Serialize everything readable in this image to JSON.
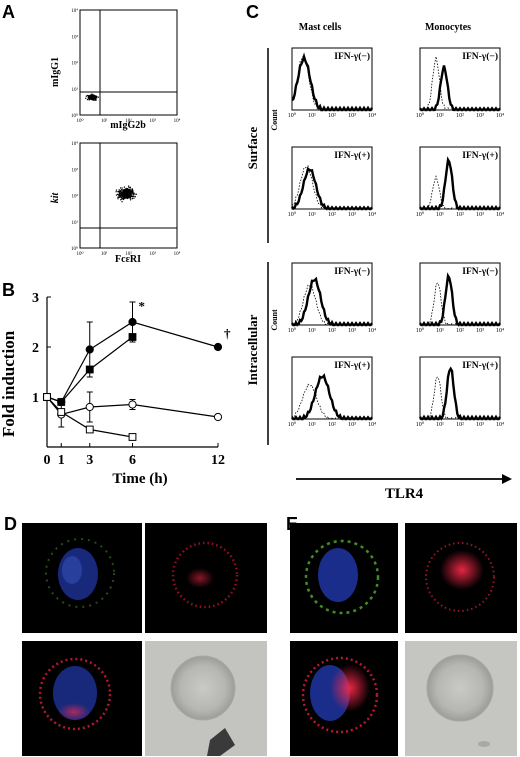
{
  "panels": {
    "A": {
      "label": "A",
      "top": {
        "ylabel": "mIgG1",
        "xlabel": "mIgG2b"
      },
      "bottom": {
        "ylabel": "kit",
        "xlabel": "FcεRI"
      },
      "ticks_y": [
        "10⁴",
        "10³",
        "10²",
        "10¹",
        "10⁰"
      ],
      "ticks_x": [
        "10⁰",
        "10¹",
        "10²",
        "10³",
        "10⁴"
      ]
    },
    "B": {
      "label": "B"
    },
    "C": {
      "label": "C",
      "col1": "Mast cells",
      "col2": "Monocytes",
      "surface": "Surface",
      "intracellular": "Intracellular",
      "count": "Count",
      "tlr4": "TLR4",
      "cond_neg": "IFN-γ(−)",
      "cond_pos": "IFN-γ(+)",
      "ticks": [
        "10⁰",
        "10¹",
        "10²",
        "10³",
        "10⁴"
      ]
    },
    "D": {
      "label": "D"
    },
    "E": {
      "label": "E"
    }
  },
  "chart_data": {
    "type": "line",
    "xlabel": "Time (h)",
    "ylabel": "Fold induction",
    "xlim": [
      0,
      12
    ],
    "ylim": [
      0,
      3
    ],
    "xticks": [
      0,
      1,
      3,
      6,
      12
    ],
    "yticks": [
      1,
      2,
      3
    ],
    "series": [
      {
        "marker": "filled-circle",
        "x": [
          0,
          1,
          3,
          6,
          12
        ],
        "y": [
          1.0,
          0.9,
          1.95,
          2.5,
          2.0
        ],
        "err": [
          0,
          0,
          0.55,
          0.4,
          0
        ]
      },
      {
        "marker": "filled-square",
        "x": [
          0,
          1,
          3,
          6
        ],
        "y": [
          1.0,
          0.9,
          1.55,
          2.2
        ],
        "err": [
          0,
          0,
          0,
          0
        ]
      },
      {
        "marker": "open-circle",
        "x": [
          0,
          1,
          3,
          6,
          12
        ],
        "y": [
          1.0,
          0.65,
          0.8,
          0.85,
          0.6
        ],
        "err": [
          0,
          0.25,
          0.3,
          0.1,
          0
        ]
      },
      {
        "marker": "open-square",
        "x": [
          0,
          1,
          3,
          6
        ],
        "y": [
          1.0,
          0.7,
          0.35,
          0.2
        ],
        "err": [
          0,
          0,
          0,
          0
        ]
      }
    ],
    "annotations": [
      {
        "text": "*",
        "x": 6,
        "y": 2.85
      },
      {
        "text": "†",
        "x": 12,
        "y": 2.3
      }
    ]
  }
}
